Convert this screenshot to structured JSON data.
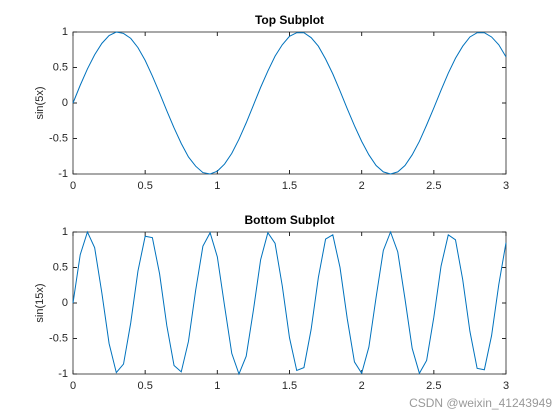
{
  "chart_data": [
    {
      "type": "line",
      "title": "Top Subplot",
      "ylabel": "sin(5x)",
      "x": [
        0,
        0.05,
        0.1,
        0.15,
        0.2,
        0.25,
        0.3,
        0.35,
        0.4,
        0.45,
        0.5,
        0.55,
        0.6,
        0.65,
        0.7,
        0.75,
        0.8,
        0.85,
        0.9,
        0.95,
        1,
        1.05,
        1.1,
        1.15,
        1.2,
        1.25,
        1.3,
        1.35,
        1.4,
        1.45,
        1.5,
        1.55,
        1.6,
        1.65,
        1.7,
        1.75,
        1.8,
        1.85,
        1.9,
        1.95,
        2,
        2.05,
        2.1,
        2.15,
        2.2,
        2.25,
        2.3,
        2.35,
        2.4,
        2.45,
        2.5,
        2.55,
        2.6,
        2.65,
        2.7,
        2.75,
        2.8,
        2.85,
        2.9,
        2.95,
        3
      ],
      "series": [
        {
          "color": "#0072bd",
          "values": [
            0,
            0.25,
            0.48,
            0.68,
            0.84,
            0.95,
            1,
            0.98,
            0.91,
            0.78,
            0.6,
            0.38,
            0.14,
            -0.11,
            -0.35,
            -0.57,
            -0.76,
            -0.89,
            -0.98,
            -1,
            -0.96,
            -0.86,
            -0.71,
            -0.51,
            -0.28,
            -0.03,
            0.22,
            0.45,
            0.66,
            0.82,
            0.94,
            0.99,
            0.99,
            0.92,
            0.8,
            0.62,
            0.41,
            0.17,
            -0.08,
            -0.32,
            -0.54,
            -0.73,
            -0.88,
            -0.97,
            -1,
            -0.97,
            -0.88,
            -0.73,
            -0.54,
            -0.31,
            -0.07,
            0.18,
            0.42,
            0.63,
            0.8,
            0.93,
            0.99,
            0.99,
            0.93,
            0.82,
            0.65
          ]
        }
      ],
      "xlim": [
        0,
        3
      ],
      "xticks": [
        0,
        0.5,
        1,
        1.5,
        2,
        2.5,
        3
      ],
      "ylim": [
        -1,
        1
      ],
      "yticks": [
        -1,
        -0.5,
        0,
        0.5,
        1
      ]
    },
    {
      "type": "line",
      "title": "Bottom Subplot",
      "ylabel": "sin(15x)",
      "x": [
        0,
        0.05,
        0.1,
        0.15,
        0.2,
        0.25,
        0.3,
        0.35,
        0.4,
        0.45,
        0.5,
        0.55,
        0.6,
        0.65,
        0.7,
        0.75,
        0.8,
        0.85,
        0.9,
        0.95,
        1,
        1.05,
        1.1,
        1.15,
        1.2,
        1.25,
        1.3,
        1.35,
        1.4,
        1.45,
        1.5,
        1.55,
        1.6,
        1.65,
        1.7,
        1.75,
        1.8,
        1.85,
        1.9,
        1.95,
        2,
        2.05,
        2.1,
        2.15,
        2.2,
        2.25,
        2.3,
        2.35,
        2.4,
        2.45,
        2.5,
        2.55,
        2.6,
        2.65,
        2.7,
        2.75,
        2.8,
        2.85,
        2.9,
        2.95,
        3
      ],
      "series": [
        {
          "color": "#0072bd",
          "values": [
            0,
            0.68,
            1,
            0.78,
            0.14,
            -0.57,
            -0.98,
            -0.86,
            -0.28,
            0.45,
            0.94,
            0.92,
            0.41,
            -0.32,
            -0.88,
            -0.97,
            -0.54,
            0.18,
            0.8,
            0.99,
            0.65,
            -0.04,
            -0.71,
            -1,
            -0.75,
            -0.1,
            0.61,
            0.99,
            0.84,
            0.24,
            -0.49,
            -0.95,
            -0.91,
            -0.37,
            0.36,
            0.9,
            0.96,
            0.5,
            -0.22,
            -0.83,
            -0.99,
            -0.62,
            0.08,
            0.74,
            1,
            0.72,
            0.06,
            -0.64,
            -0.99,
            -0.81,
            -0.2,
            0.52,
            0.96,
            0.89,
            0.33,
            -0.4,
            -0.92,
            -0.94,
            -0.46,
            0.26,
            0.85
          ]
        }
      ],
      "xlim": [
        0,
        3
      ],
      "xticks": [
        0,
        0.5,
        1,
        1.5,
        2,
        2.5,
        3
      ],
      "ylim": [
        -1,
        1
      ],
      "yticks": [
        -1,
        -0.5,
        0,
        0.5,
        1
      ]
    }
  ],
  "watermark": "CSDN @weixin_41243949"
}
